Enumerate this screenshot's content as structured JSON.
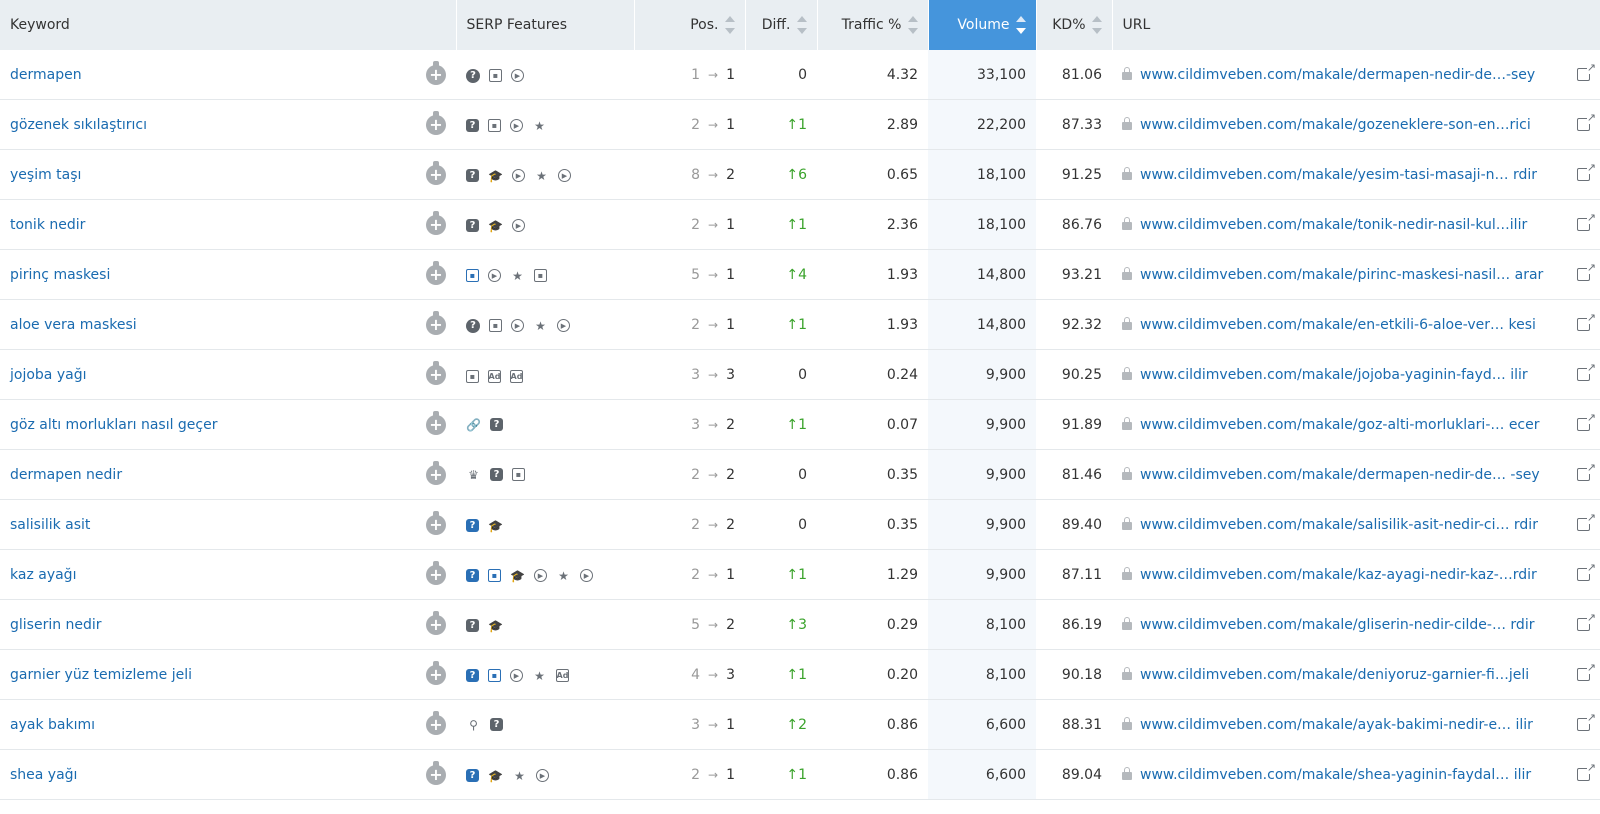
{
  "headers": {
    "keyword": "Keyword",
    "serp": "SERP Features",
    "pos": "Pos.",
    "diff": "Diff.",
    "traffic": "Traffic %",
    "volume": "Volume",
    "kd": "KD%",
    "url": "URL"
  },
  "colors": {
    "sorted_header": "#4595dc",
    "link": "#1a6bb0",
    "positive_diff": "#3aa32b"
  },
  "rows": [
    {
      "keyword": "dermapen",
      "features": [
        "question-icon",
        "image-icon",
        "video-icon"
      ],
      "pos_from": "1",
      "pos_to": "1",
      "diff": "0",
      "diff_up": false,
      "traffic": "4.32",
      "volume": "33,100",
      "kd": "81.06",
      "url": "www.cildimveben.com/makale/dermapen-nedir-de…-sey"
    },
    {
      "keyword": "gözenek sıkılaştırıcı",
      "features": [
        "faq-icon",
        "image-icon",
        "video-icon",
        "review-icon"
      ],
      "pos_from": "2",
      "pos_to": "1",
      "diff": "1",
      "diff_up": true,
      "traffic": "2.89",
      "volume": "22,200",
      "kd": "87.33",
      "url": "www.cildimveben.com/makale/gozeneklere-son-en…rici"
    },
    {
      "keyword": "yeşim taşı",
      "features": [
        "faq-icon",
        "knowledge-icon",
        "video-icon",
        "review-icon",
        "video-icon"
      ],
      "pos_from": "8",
      "pos_to": "2",
      "diff": "6",
      "diff_up": true,
      "traffic": "0.65",
      "volume": "18,100",
      "kd": "91.25",
      "url": "www.cildimveben.com/makale/yesim-tasi-masaji-n… rdir"
    },
    {
      "keyword": "tonik nedir",
      "features": [
        "faq-icon",
        "knowledge-icon",
        "video-icon"
      ],
      "pos_from": "2",
      "pos_to": "1",
      "diff": "1",
      "diff_up": true,
      "traffic": "2.36",
      "volume": "18,100",
      "kd": "86.76",
      "url": "www.cildimveben.com/makale/tonik-nedir-nasil-kul…ilir"
    },
    {
      "keyword": "pirinç maskesi",
      "features": [
        "image-blue-icon",
        "video-icon",
        "review-icon",
        "image-icon"
      ],
      "pos_from": "5",
      "pos_to": "1",
      "diff": "4",
      "diff_up": true,
      "traffic": "1.93",
      "volume": "14,800",
      "kd": "93.21",
      "url": "www.cildimveben.com/makale/pirinc-maskesi-nasil… arar"
    },
    {
      "keyword": "aloe vera maskesi",
      "features": [
        "question-icon",
        "image-icon",
        "video-icon",
        "review-icon",
        "video-icon"
      ],
      "pos_from": "2",
      "pos_to": "1",
      "diff": "1",
      "diff_up": true,
      "traffic": "1.93",
      "volume": "14,800",
      "kd": "92.32",
      "url": "www.cildimveben.com/makale/en-etkili-6-aloe-ver… kesi"
    },
    {
      "keyword": "jojoba yağı",
      "features": [
        "image-icon",
        "ad-top-icon",
        "ad-bottom-icon"
      ],
      "pos_from": "3",
      "pos_to": "3",
      "diff": "0",
      "diff_up": false,
      "traffic": "0.24",
      "volume": "9,900",
      "kd": "90.25",
      "url": "www.cildimveben.com/makale/jojoba-yaginin-fayd… ilir"
    },
    {
      "keyword": "göz altı morlukları nasıl geçer",
      "features": [
        "link-icon",
        "faq-icon"
      ],
      "pos_from": "3",
      "pos_to": "2",
      "diff": "1",
      "diff_up": true,
      "traffic": "0.07",
      "volume": "9,900",
      "kd": "91.89",
      "url": "www.cildimveben.com/makale/goz-alti-morluklari-… ecer"
    },
    {
      "keyword": "dermapen nedir",
      "features": [
        "crown-icon",
        "faq-icon",
        "image-icon"
      ],
      "pos_from": "2",
      "pos_to": "2",
      "diff": "0",
      "diff_up": false,
      "traffic": "0.35",
      "volume": "9,900",
      "kd": "81.46",
      "url": "www.cildimveben.com/makale/dermapen-nedir-de… -sey"
    },
    {
      "keyword": "salisilik asit",
      "features": [
        "faq-blue-icon",
        "knowledge-icon"
      ],
      "pos_from": "2",
      "pos_to": "2",
      "diff": "0",
      "diff_up": false,
      "traffic": "0.35",
      "volume": "9,900",
      "kd": "89.40",
      "url": "www.cildimveben.com/makale/salisilik-asit-nedir-ci… rdir"
    },
    {
      "keyword": "kaz ayağı",
      "features": [
        "faq-blue-icon",
        "image-blue-icon",
        "knowledge-icon",
        "video-icon",
        "review-icon",
        "video-icon"
      ],
      "pos_from": "2",
      "pos_to": "1",
      "diff": "1",
      "diff_up": true,
      "traffic": "1.29",
      "volume": "9,900",
      "kd": "87.11",
      "url": "www.cildimveben.com/makale/kaz-ayagi-nedir-kaz-…rdir"
    },
    {
      "keyword": "gliserin nedir",
      "features": [
        "faq-icon",
        "knowledge-icon"
      ],
      "pos_from": "5",
      "pos_to": "2",
      "diff": "3",
      "diff_up": true,
      "traffic": "0.29",
      "volume": "8,100",
      "kd": "86.19",
      "url": "www.cildimveben.com/makale/gliserin-nedir-cilde-… rdir"
    },
    {
      "keyword": "garnier yüz temizleme jeli",
      "features": [
        "faq-blue-icon",
        "image-blue-icon",
        "video-icon",
        "review-icon",
        "ad-bottom-icon"
      ],
      "pos_from": "4",
      "pos_to": "3",
      "diff": "1",
      "diff_up": true,
      "traffic": "0.20",
      "volume": "8,100",
      "kd": "90.18",
      "url": "www.cildimveben.com/makale/deniyoruz-garnier-fi…jeli"
    },
    {
      "keyword": "ayak bakımı",
      "features": [
        "pin-icon",
        "faq-icon"
      ],
      "pos_from": "3",
      "pos_to": "1",
      "diff": "2",
      "diff_up": true,
      "traffic": "0.86",
      "volume": "6,600",
      "kd": "88.31",
      "url": "www.cildimveben.com/makale/ayak-bakimi-nedir-e… ilir"
    },
    {
      "keyword": "shea yağı",
      "features": [
        "faq-blue-icon",
        "knowledge-icon",
        "review-icon",
        "video-icon"
      ],
      "pos_from": "2",
      "pos_to": "1",
      "diff": "1",
      "diff_up": true,
      "traffic": "0.86",
      "volume": "6,600",
      "kd": "89.04",
      "url": "www.cildimveben.com/makale/shea-yaginin-faydal… ilir"
    }
  ]
}
